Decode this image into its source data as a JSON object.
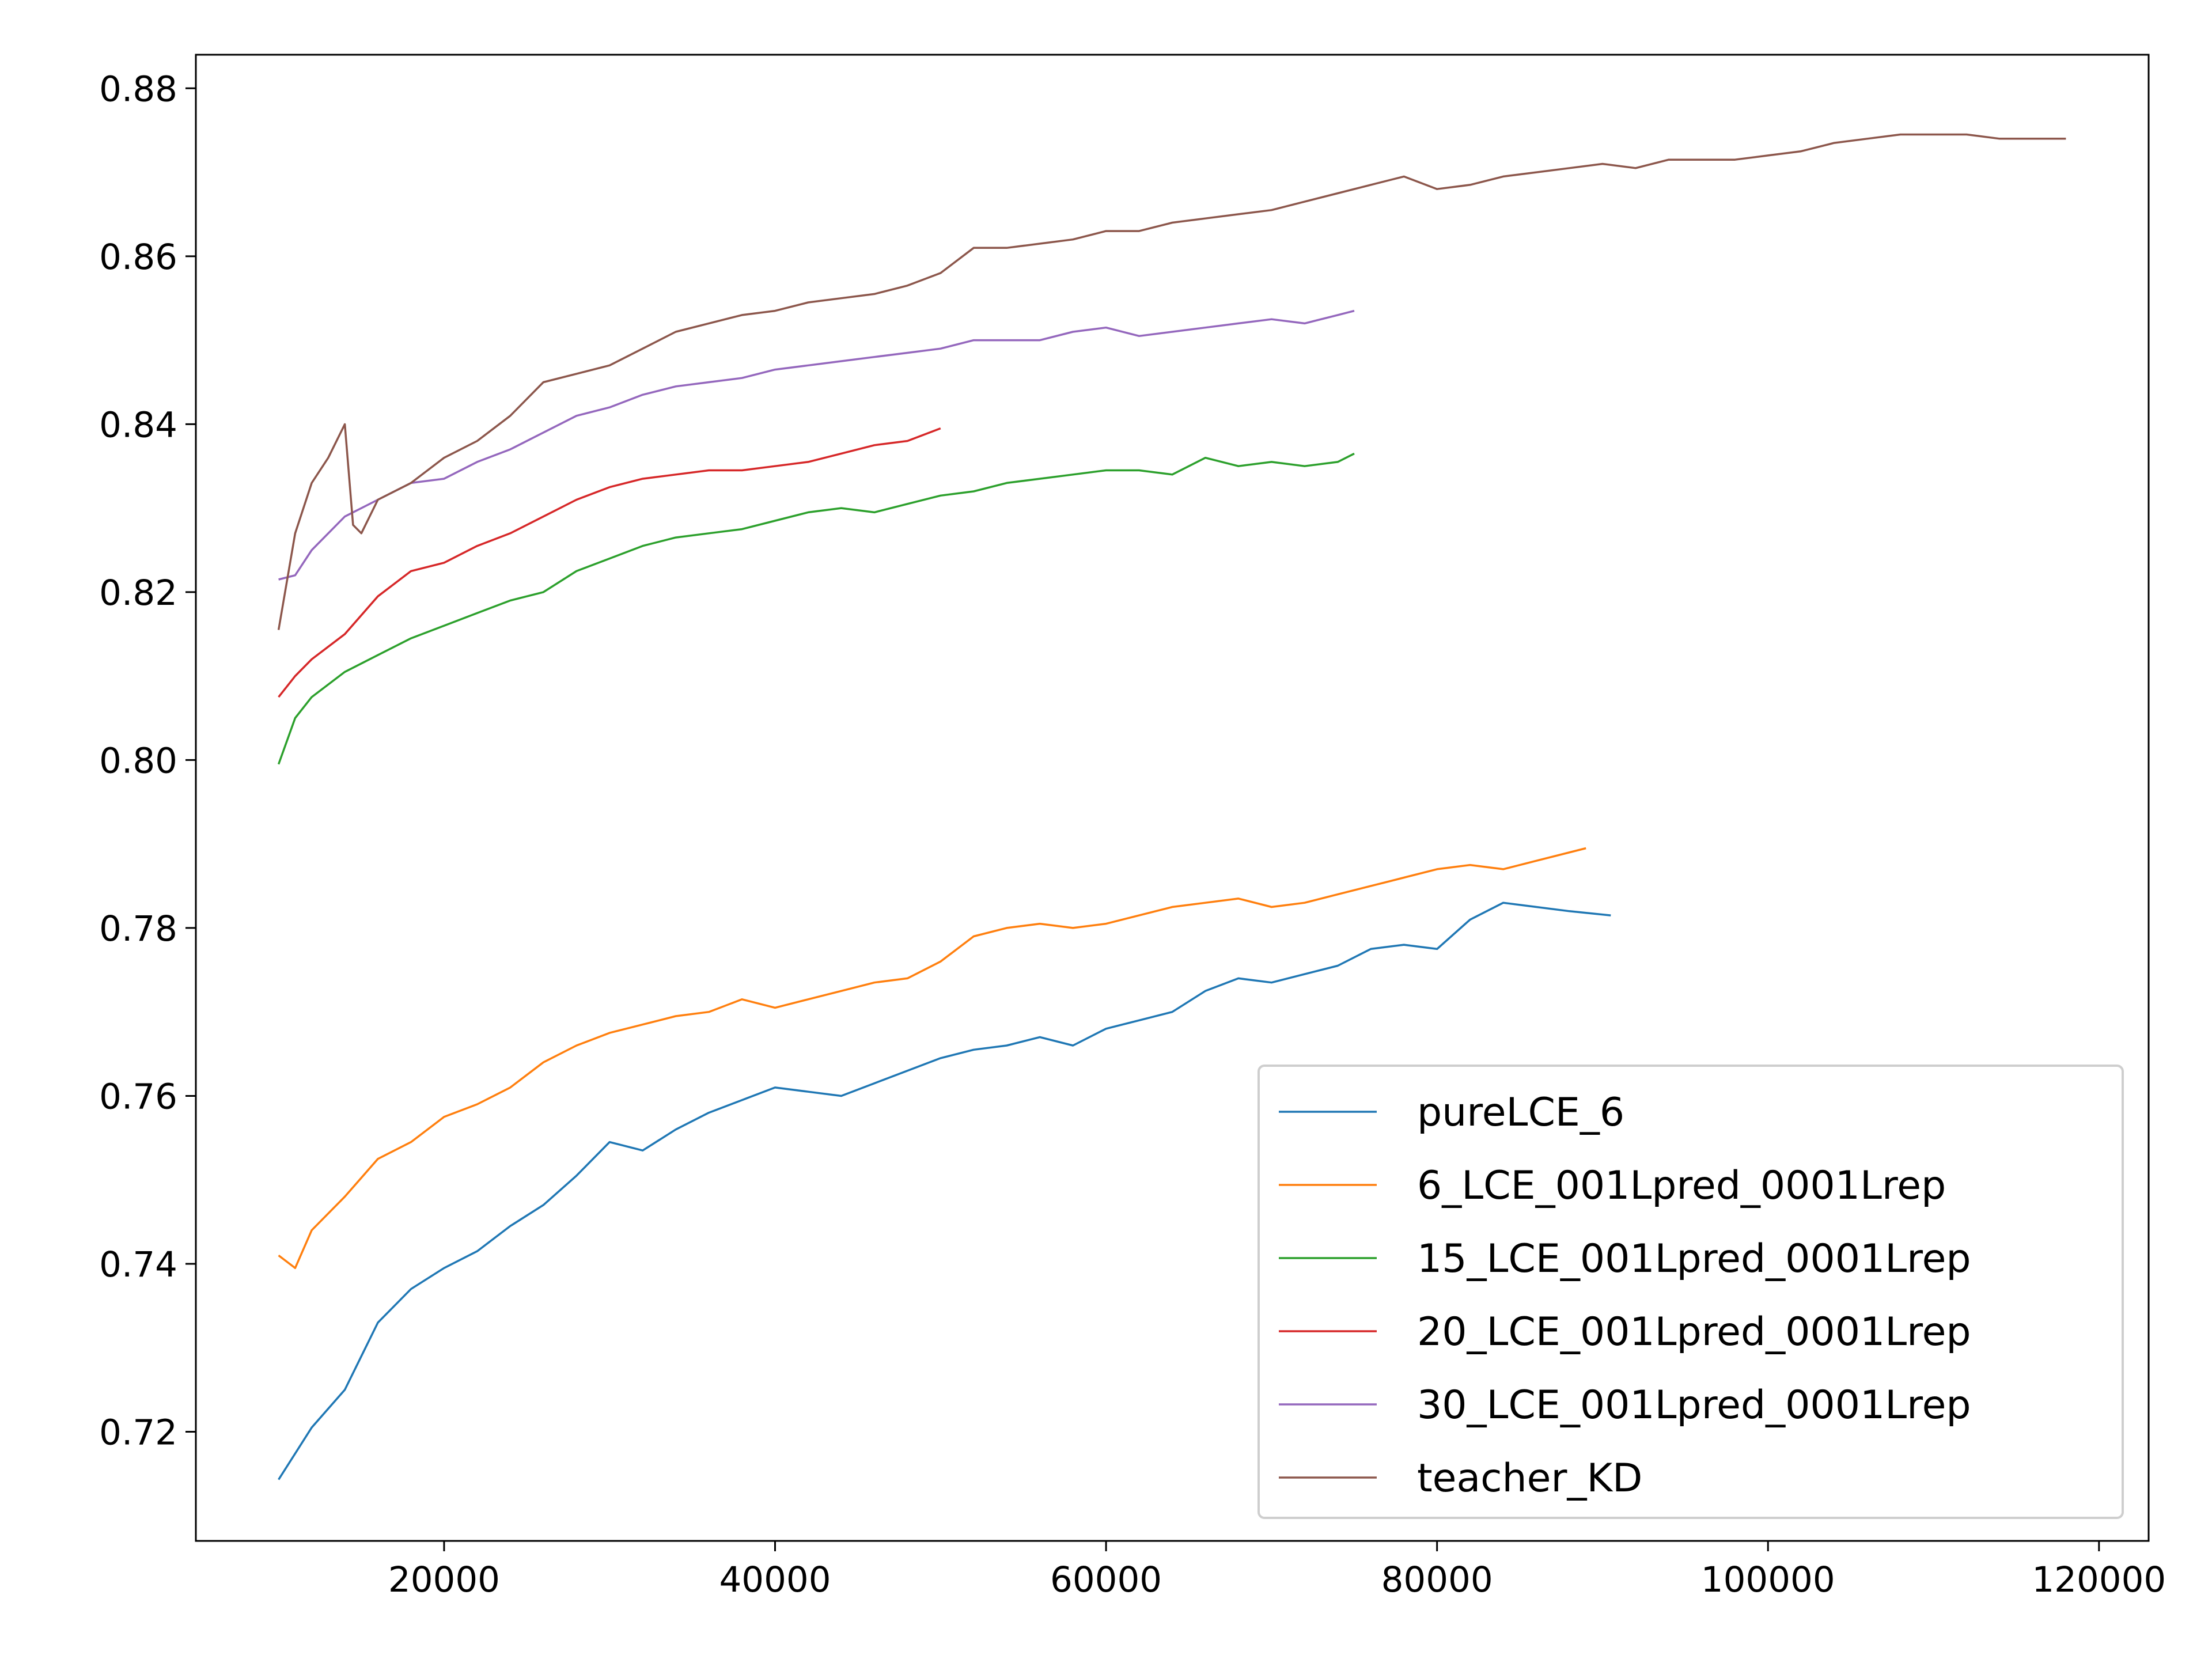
{
  "chart_data": {
    "type": "line",
    "title": "",
    "xlabel": "",
    "ylabel": "",
    "xlim": [
      5000,
      123000
    ],
    "ylim": [
      0.707,
      0.884
    ],
    "xticks": [
      20000,
      40000,
      60000,
      80000,
      100000,
      120000
    ],
    "xtick_labels": [
      "20000",
      "40000",
      "60000",
      "80000",
      "100000",
      "120000"
    ],
    "yticks": [
      0.72,
      0.74,
      0.76,
      0.78,
      0.8,
      0.82,
      0.84,
      0.86,
      0.88
    ],
    "ytick_labels": [
      "0.72",
      "0.74",
      "0.76",
      "0.78",
      "0.80",
      "0.82",
      "0.84",
      "0.86",
      "0.88"
    ],
    "grid": false,
    "legend_position": "lower-right",
    "series": [
      {
        "name": "pureLCE_6",
        "color": "#1f77b4",
        "points": [
          [
            10000,
            0.7143
          ],
          [
            12000,
            0.7205
          ],
          [
            14000,
            0.725
          ],
          [
            16000,
            0.733
          ],
          [
            18000,
            0.737
          ],
          [
            20000,
            0.7395
          ],
          [
            22000,
            0.7415
          ],
          [
            24000,
            0.7445
          ],
          [
            26000,
            0.747
          ],
          [
            28000,
            0.7505
          ],
          [
            30000,
            0.7545
          ],
          [
            32000,
            0.7535
          ],
          [
            34000,
            0.756
          ],
          [
            36000,
            0.758
          ],
          [
            38000,
            0.7595
          ],
          [
            40000,
            0.761
          ],
          [
            42000,
            0.7605
          ],
          [
            44000,
            0.76
          ],
          [
            46000,
            0.7615
          ],
          [
            48000,
            0.763
          ],
          [
            50000,
            0.7645
          ],
          [
            52000,
            0.7655
          ],
          [
            54000,
            0.766
          ],
          [
            56000,
            0.767
          ],
          [
            58000,
            0.766
          ],
          [
            60000,
            0.768
          ],
          [
            62000,
            0.769
          ],
          [
            64000,
            0.77
          ],
          [
            66000,
            0.7725
          ],
          [
            68000,
            0.774
          ],
          [
            70000,
            0.7735
          ],
          [
            72000,
            0.7745
          ],
          [
            74000,
            0.7755
          ],
          [
            76000,
            0.7775
          ],
          [
            78000,
            0.778
          ],
          [
            80000,
            0.7775
          ],
          [
            82000,
            0.781
          ],
          [
            84000,
            0.783
          ],
          [
            86000,
            0.7825
          ],
          [
            88000,
            0.782
          ],
          [
            90500,
            0.7815
          ]
        ]
      },
      {
        "name": "6_LCE_001Lpred_0001Lrep",
        "color": "#ff7f0e",
        "points": [
          [
            10000,
            0.741
          ],
          [
            11000,
            0.7395
          ],
          [
            12000,
            0.744
          ],
          [
            14000,
            0.748
          ],
          [
            16000,
            0.7525
          ],
          [
            18000,
            0.7545
          ],
          [
            20000,
            0.7575
          ],
          [
            22000,
            0.759
          ],
          [
            24000,
            0.761
          ],
          [
            26000,
            0.764
          ],
          [
            28000,
            0.766
          ],
          [
            30000,
            0.7675
          ],
          [
            32000,
            0.7685
          ],
          [
            34000,
            0.7695
          ],
          [
            36000,
            0.77
          ],
          [
            38000,
            0.7715
          ],
          [
            40000,
            0.7705
          ],
          [
            42000,
            0.7715
          ],
          [
            44000,
            0.7725
          ],
          [
            46000,
            0.7735
          ],
          [
            48000,
            0.774
          ],
          [
            50000,
            0.776
          ],
          [
            52000,
            0.779
          ],
          [
            54000,
            0.78
          ],
          [
            56000,
            0.7805
          ],
          [
            58000,
            0.78
          ],
          [
            60000,
            0.7805
          ],
          [
            62000,
            0.7815
          ],
          [
            64000,
            0.7825
          ],
          [
            66000,
            0.783
          ],
          [
            68000,
            0.7835
          ],
          [
            70000,
            0.7825
          ],
          [
            72000,
            0.783
          ],
          [
            74000,
            0.784
          ],
          [
            76000,
            0.785
          ],
          [
            78000,
            0.786
          ],
          [
            80000,
            0.787
          ],
          [
            82000,
            0.7875
          ],
          [
            84000,
            0.787
          ],
          [
            86000,
            0.788
          ],
          [
            89000,
            0.7895
          ]
        ]
      },
      {
        "name": "15_LCE_001Lpred_0001Lrep",
        "color": "#2ca02c",
        "points": [
          [
            10000,
            0.7995
          ],
          [
            11000,
            0.805
          ],
          [
            12000,
            0.8075
          ],
          [
            14000,
            0.8105
          ],
          [
            16000,
            0.8125
          ],
          [
            18000,
            0.8145
          ],
          [
            20000,
            0.816
          ],
          [
            22000,
            0.8175
          ],
          [
            24000,
            0.819
          ],
          [
            26000,
            0.82
          ],
          [
            28000,
            0.8225
          ],
          [
            30000,
            0.824
          ],
          [
            32000,
            0.8255
          ],
          [
            34000,
            0.8265
          ],
          [
            36000,
            0.827
          ],
          [
            38000,
            0.8275
          ],
          [
            40000,
            0.8285
          ],
          [
            42000,
            0.8295
          ],
          [
            44000,
            0.83
          ],
          [
            46000,
            0.8295
          ],
          [
            48000,
            0.8305
          ],
          [
            50000,
            0.8315
          ],
          [
            52000,
            0.832
          ],
          [
            54000,
            0.833
          ],
          [
            56000,
            0.8335
          ],
          [
            58000,
            0.834
          ],
          [
            60000,
            0.8345
          ],
          [
            62000,
            0.8345
          ],
          [
            64000,
            0.834
          ],
          [
            66000,
            0.836
          ],
          [
            68000,
            0.835
          ],
          [
            70000,
            0.8355
          ],
          [
            72000,
            0.835
          ],
          [
            74000,
            0.8355
          ],
          [
            75000,
            0.8365
          ]
        ]
      },
      {
        "name": "20_LCE_001Lpred_0001Lrep",
        "color": "#d62728",
        "points": [
          [
            10000,
            0.8075
          ],
          [
            11000,
            0.81
          ],
          [
            12000,
            0.812
          ],
          [
            14000,
            0.815
          ],
          [
            16000,
            0.8195
          ],
          [
            18000,
            0.8225
          ],
          [
            20000,
            0.8235
          ],
          [
            22000,
            0.8255
          ],
          [
            24000,
            0.827
          ],
          [
            26000,
            0.829
          ],
          [
            28000,
            0.831
          ],
          [
            30000,
            0.8325
          ],
          [
            32000,
            0.8335
          ],
          [
            34000,
            0.834
          ],
          [
            36000,
            0.8345
          ],
          [
            38000,
            0.8345
          ],
          [
            40000,
            0.835
          ],
          [
            42000,
            0.8355
          ],
          [
            44000,
            0.8365
          ],
          [
            46000,
            0.8375
          ],
          [
            48000,
            0.838
          ],
          [
            50000,
            0.8395
          ]
        ]
      },
      {
        "name": "30_LCE_001Lpred_0001Lrep",
        "color": "#9467bd",
        "points": [
          [
            10000,
            0.8215
          ],
          [
            11000,
            0.822
          ],
          [
            12000,
            0.825
          ],
          [
            14000,
            0.829
          ],
          [
            16000,
            0.831
          ],
          [
            18000,
            0.833
          ],
          [
            20000,
            0.8335
          ],
          [
            22000,
            0.8355
          ],
          [
            24000,
            0.837
          ],
          [
            26000,
            0.839
          ],
          [
            28000,
            0.841
          ],
          [
            30000,
            0.842
          ],
          [
            32000,
            0.8435
          ],
          [
            34000,
            0.8445
          ],
          [
            36000,
            0.845
          ],
          [
            38000,
            0.8455
          ],
          [
            40000,
            0.8465
          ],
          [
            42000,
            0.847
          ],
          [
            44000,
            0.8475
          ],
          [
            46000,
            0.848
          ],
          [
            48000,
            0.8485
          ],
          [
            50000,
            0.849
          ],
          [
            52000,
            0.85
          ],
          [
            54000,
            0.85
          ],
          [
            56000,
            0.85
          ],
          [
            58000,
            0.851
          ],
          [
            60000,
            0.8515
          ],
          [
            62000,
            0.8505
          ],
          [
            64000,
            0.851
          ],
          [
            66000,
            0.8515
          ],
          [
            68000,
            0.852
          ],
          [
            70000,
            0.8525
          ],
          [
            72000,
            0.852
          ],
          [
            74000,
            0.853
          ],
          [
            75000,
            0.8535
          ]
        ]
      },
      {
        "name": "teacher_KD",
        "color": "#8c564b",
        "points": [
          [
            10000,
            0.8155
          ],
          [
            11000,
            0.827
          ],
          [
            12000,
            0.833
          ],
          [
            13000,
            0.836
          ],
          [
            14000,
            0.84
          ],
          [
            14500,
            0.828
          ],
          [
            15000,
            0.827
          ],
          [
            16000,
            0.831
          ],
          [
            18000,
            0.833
          ],
          [
            20000,
            0.836
          ],
          [
            22000,
            0.838
          ],
          [
            24000,
            0.841
          ],
          [
            26000,
            0.845
          ],
          [
            28000,
            0.846
          ],
          [
            30000,
            0.847
          ],
          [
            32000,
            0.849
          ],
          [
            34000,
            0.851
          ],
          [
            36000,
            0.852
          ],
          [
            38000,
            0.853
          ],
          [
            40000,
            0.8535
          ],
          [
            42000,
            0.8545
          ],
          [
            44000,
            0.855
          ],
          [
            46000,
            0.8555
          ],
          [
            48000,
            0.8565
          ],
          [
            50000,
            0.858
          ],
          [
            52000,
            0.861
          ],
          [
            54000,
            0.861
          ],
          [
            56000,
            0.8615
          ],
          [
            58000,
            0.862
          ],
          [
            60000,
            0.863
          ],
          [
            62000,
            0.863
          ],
          [
            64000,
            0.864
          ],
          [
            66000,
            0.8645
          ],
          [
            68000,
            0.865
          ],
          [
            70000,
            0.8655
          ],
          [
            72000,
            0.8665
          ],
          [
            74000,
            0.8675
          ],
          [
            76000,
            0.8685
          ],
          [
            78000,
            0.8695
          ],
          [
            80000,
            0.868
          ],
          [
            82000,
            0.8685
          ],
          [
            84000,
            0.8695
          ],
          [
            86000,
            0.87
          ],
          [
            88000,
            0.8705
          ],
          [
            90000,
            0.871
          ],
          [
            92000,
            0.8705
          ],
          [
            94000,
            0.8715
          ],
          [
            96000,
            0.8715
          ],
          [
            98000,
            0.8715
          ],
          [
            100000,
            0.872
          ],
          [
            102000,
            0.8725
          ],
          [
            104000,
            0.8735
          ],
          [
            106000,
            0.874
          ],
          [
            108000,
            0.8745
          ],
          [
            110000,
            0.8745
          ],
          [
            112000,
            0.8745
          ],
          [
            114000,
            0.874
          ],
          [
            116000,
            0.874
          ],
          [
            118000,
            0.874
          ]
        ]
      }
    ]
  }
}
